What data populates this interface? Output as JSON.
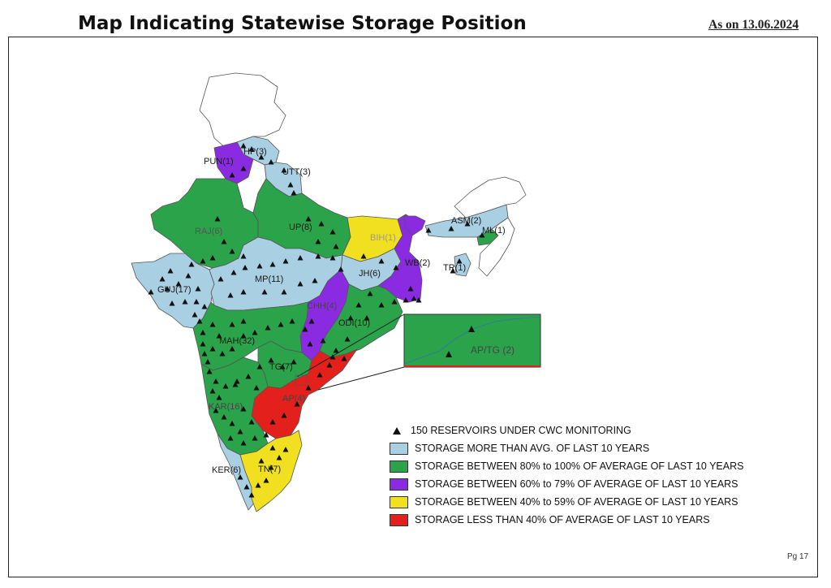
{
  "header": {
    "title": "Map Indicating Statewise Storage Position",
    "date": "As on 13.06.2024"
  },
  "colors": {
    "above_avg": "#a8cfe2",
    "80_100": "#2aa34a",
    "60_79": "#8a2be2",
    "40_59": "#f0e020",
    "below_40": "#e3201b",
    "no_data": "#ffffff"
  },
  "states": [
    {
      "label": "HP(3)",
      "category": "above_avg"
    },
    {
      "label": "PUN(1)",
      "category": "60_79"
    },
    {
      "label": "UTT(3)",
      "category": "above_avg"
    },
    {
      "label": "RAJ(6)",
      "category": "80_100"
    },
    {
      "label": "UP(8)",
      "category": "80_100"
    },
    {
      "label": "BIH(1)",
      "category": "40_59"
    },
    {
      "label": "ASM(2)",
      "category": "above_avg"
    },
    {
      "label": "ML(1)",
      "category": "80_100"
    },
    {
      "label": "TR(1)",
      "category": "above_avg"
    },
    {
      "label": "WB(2)",
      "category": "60_79"
    },
    {
      "label": "JH(6)",
      "category": "above_avg"
    },
    {
      "label": "GUJ(17)",
      "category": "above_avg"
    },
    {
      "label": "MP(11)",
      "category": "above_avg"
    },
    {
      "label": "CHH(4)",
      "category": "60_79"
    },
    {
      "label": "ODI(10)",
      "category": "80_100"
    },
    {
      "label": "MAH(32)",
      "category": "80_100"
    },
    {
      "label": "TG(7)",
      "category": "80_100"
    },
    {
      "label": "AP(4)",
      "category": "below_40"
    },
    {
      "label": "KAR(16)",
      "category": "80_100"
    },
    {
      "label": "KER(6)",
      "category": "above_avg"
    },
    {
      "label": "TN(7)",
      "category": "40_59"
    }
  ],
  "inset": {
    "label": "AP/TG (2)"
  },
  "legend": [
    {
      "label": "150 RESERVOIRS UNDER CWC MONITORING",
      "symbol": "triangle"
    },
    {
      "label": "STORAGE MORE THAN AVG. OF LAST 10 YEARS",
      "category": "above_avg"
    },
    {
      "label": "STORAGE BETWEEN 80% to 100% OF AVERAGE OF LAST 10 YEARS",
      "category": "80_100"
    },
    {
      "label": "STORAGE BETWEEN 60% to 79% OF AVERAGE OF LAST 10 YEARS",
      "category": "60_79"
    },
    {
      "label": "STORAGE BETWEEN 40% to 59% OF AVERAGE OF LAST 10 YEARS",
      "category": "40_59"
    },
    {
      "label": "STORAGE LESS THAN 40% OF AVERAGE OF LAST 10 YEARS",
      "category": "below_40"
    }
  ],
  "footer": {
    "page": "Pg 17"
  }
}
